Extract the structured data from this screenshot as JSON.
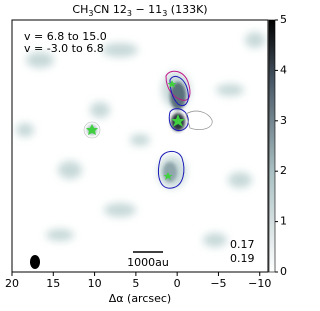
{
  "chart_data": {
    "type": "image",
    "title_parts": [
      "CH",
      "3",
      "CN 12",
      "3",
      " − 11",
      "3",
      " (133K)"
    ],
    "velocity_ranges": [
      {
        "label": "v = 6.8 to 15.0",
        "color": "#c0198a"
      },
      {
        "label": "v = -3.0 to 6.8",
        "color": "#1a1ab8"
      }
    ],
    "scale_bar_label": "1000au",
    "contour_levels": [
      {
        "value": 0.17,
        "color": "#c0198a"
      },
      {
        "value": 0.19,
        "color": "#1a1ab8"
      }
    ],
    "xlabel": "Δα (arcsec)",
    "xlim": [
      20,
      -11
    ],
    "xticks": [
      20,
      15,
      10,
      5,
      0,
      {
        "value": -5,
        "label": "−5"
      },
      {
        "value": -10,
        "label": "−10"
      }
    ],
    "colorbar": {
      "lim": [
        0,
        5
      ],
      "ticks": [
        0,
        1,
        2,
        3,
        4,
        5
      ]
    }
  }
}
